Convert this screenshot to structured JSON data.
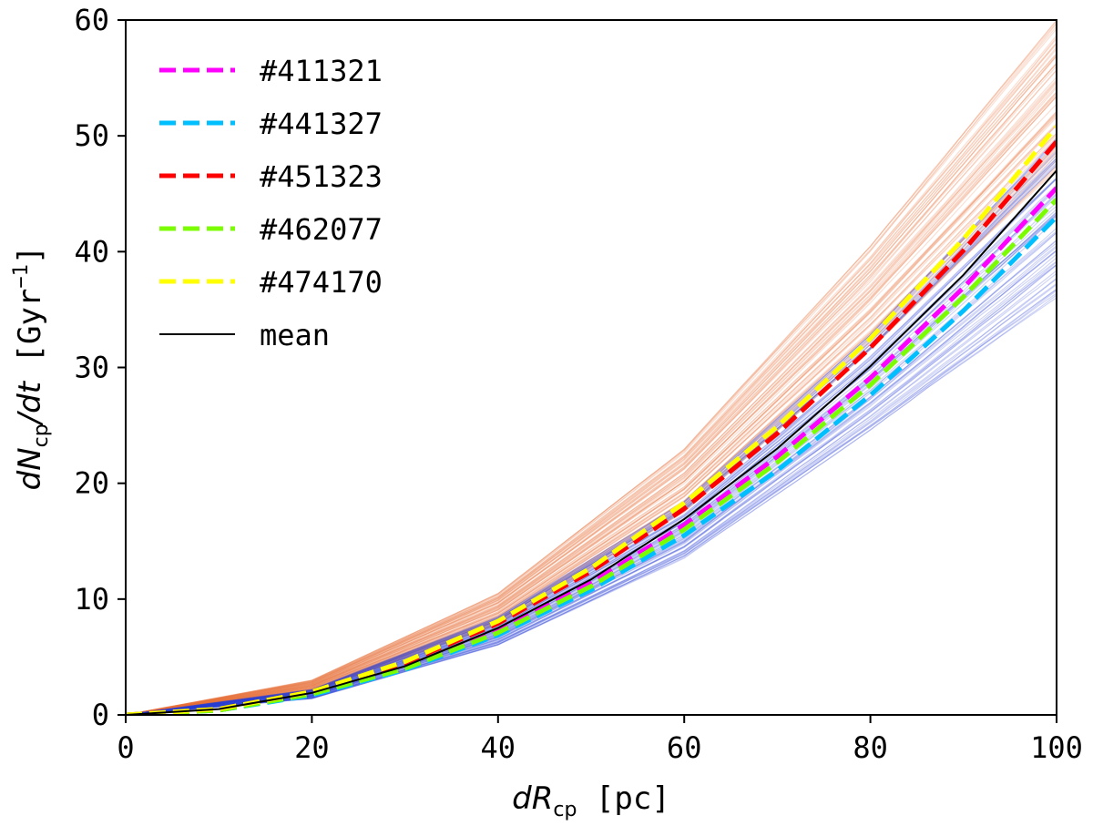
{
  "chart_data": {
    "type": "line",
    "xlabel": "dR_cp [pc]",
    "ylabel": "dN_cp/dt [Gyr^-1]",
    "xlim": [
      0,
      100
    ],
    "ylim": [
      0,
      60
    ],
    "xticks": [
      "0",
      "20",
      "40",
      "60",
      "80",
      "100"
    ],
    "yticks": [
      "0",
      "10",
      "20",
      "30",
      "40",
      "50",
      "60"
    ],
    "grid": false,
    "legend_position": "top-left",
    "background_bands": [
      {
        "color": "#e8743b",
        "description_values": {
          "x": [
            0,
            20,
            40,
            60,
            80,
            100
          ],
          "low": [
            0,
            2.0,
            7.8,
            17.5,
            31.5,
            47.0
          ],
          "high": [
            0,
            3.0,
            10.5,
            23.0,
            40.5,
            60.0
          ]
        }
      },
      {
        "color": "#2a3fd6",
        "description_values": {
          "x": [
            0,
            20,
            40,
            60,
            80,
            100
          ],
          "low": [
            0,
            1.4,
            6.0,
            13.5,
            24.5,
            36.0
          ],
          "high": [
            0,
            2.2,
            8.5,
            18.5,
            33.0,
            50.0
          ]
        }
      }
    ],
    "series": [
      {
        "name": "#411321",
        "color": "#ff00ff",
        "style": "dashed",
        "x": [
          0,
          10,
          20,
          30,
          40,
          50,
          60,
          70,
          80,
          90,
          100
        ],
        "y": [
          0,
          0.4,
          1.8,
          4.1,
          7.3,
          11.4,
          16.4,
          22.3,
          29.1,
          36.9,
          45.5
        ]
      },
      {
        "name": "#441327",
        "color": "#00bfff",
        "style": "dashed",
        "x": [
          0,
          10,
          20,
          30,
          40,
          50,
          60,
          70,
          80,
          90,
          100
        ],
        "y": [
          0,
          0.4,
          1.7,
          3.9,
          6.9,
          10.8,
          15.5,
          21.1,
          27.6,
          34.9,
          43.0
        ]
      },
      {
        "name": "#451323",
        "color": "#ff0000",
        "style": "dashed",
        "x": [
          0,
          10,
          20,
          30,
          40,
          50,
          60,
          70,
          80,
          90,
          100
        ],
        "y": [
          0,
          0.5,
          2.0,
          4.5,
          7.9,
          12.4,
          17.8,
          24.3,
          31.7,
          40.1,
          49.5
        ]
      },
      {
        "name": "#462077",
        "color": "#7cfc00",
        "style": "dashed",
        "x": [
          0,
          10,
          20,
          30,
          40,
          50,
          60,
          70,
          80,
          90,
          100
        ],
        "y": [
          0,
          0.4,
          1.8,
          4.0,
          7.1,
          11.1,
          16.0,
          21.8,
          28.5,
          36.1,
          44.5
        ]
      },
      {
        "name": "#474170",
        "color": "#ffff00",
        "style": "dashed",
        "x": [
          0,
          10,
          20,
          30,
          40,
          50,
          60,
          70,
          80,
          90,
          100
        ],
        "y": [
          0,
          0.5,
          2.0,
          4.6,
          8.1,
          12.7,
          18.3,
          24.9,
          32.5,
          41.1,
          50.8
        ]
      },
      {
        "name": "mean",
        "color": "#000000",
        "style": "solid",
        "x": [
          0,
          10,
          20,
          30,
          40,
          50,
          60,
          70,
          80,
          90,
          100
        ],
        "y": [
          0,
          0.5,
          1.9,
          4.2,
          7.5,
          11.7,
          16.9,
          23.0,
          30.1,
          38.0,
          47.0
        ]
      }
    ]
  }
}
